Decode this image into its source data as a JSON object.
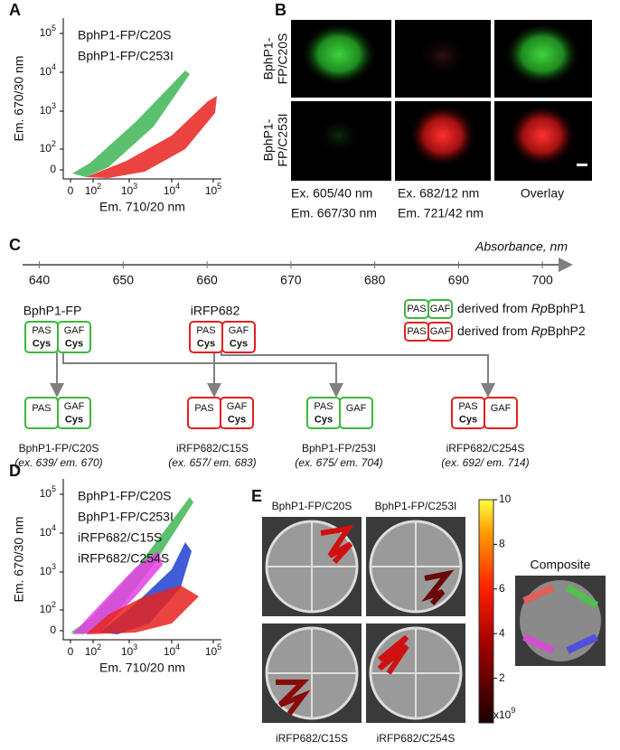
{
  "panels": {
    "a": {
      "label": "A",
      "y_label": "Em. 670/30 nm",
      "x_label": "Em. 710/20 nm",
      "yticks": [
        {
          "base": "10",
          "exp": "5"
        },
        {
          "base": "10",
          "exp": "4"
        },
        {
          "base": "10",
          "exp": "3"
        },
        {
          "base": "10",
          "exp": "2"
        },
        {
          "base": "0"
        }
      ],
      "xticks": [
        {
          "base": "0"
        },
        {
          "base": "10",
          "exp": "2"
        },
        {
          "base": "10",
          "exp": "3"
        },
        {
          "base": "10",
          "exp": "4"
        },
        {
          "base": "10",
          "exp": "5"
        }
      ],
      "legend": [
        {
          "name": "BphP1-FP/C20S",
          "color": "#33b24a"
        },
        {
          "name": "BphP1-FP/C253I",
          "color": "#e8231f"
        }
      ]
    },
    "b": {
      "label": "B",
      "rows": [
        {
          "lines": [
            "BphP1-",
            "FP/C20S"
          ],
          "color": "#33b24a"
        },
        {
          "lines": [
            "BphP1-",
            "FP/C253I"
          ],
          "color": "#e8231f"
        }
      ],
      "columns": [
        [
          "Ex. 605/40 nm",
          "Em. 667/30 nm"
        ],
        [
          "Ex. 682/12 nm",
          "Em. 721/42 nm"
        ],
        [
          "Overlay"
        ]
      ]
    },
    "c": {
      "label": "C",
      "axis": {
        "title": "Absorbance, nm",
        "ticks": [
          640,
          650,
          660,
          670,
          680,
          690,
          700
        ],
        "lim": [
          638,
          703
        ]
      },
      "parents": [
        {
          "name": "BphP1-FP",
          "color": "#3cb83c",
          "domains": [
            {
              "name": "PAS",
              "sub": "Cys"
            },
            {
              "name": "GAF",
              "sub": "Cys"
            }
          ]
        },
        {
          "name": "iRFP682",
          "color": "#e02020",
          "domains": [
            {
              "name": "PAS",
              "sub": "Cys"
            },
            {
              "name": "GAF",
              "sub": "Cys"
            }
          ]
        }
      ],
      "legend": [
        {
          "color": "#3cb83c",
          "domains": [
            "PAS",
            "GAF"
          ],
          "prefix": "derived from ",
          "italic": "Rp",
          "name": "BphP1"
        },
        {
          "color": "#e02020",
          "domains": [
            "PAS",
            "GAF"
          ],
          "prefix": "derived from ",
          "italic": "Rp",
          "name": "BphP2"
        }
      ],
      "mutants": [
        {
          "name": "BphP1-FP/C20S",
          "spectra": "(ex. 639/ em. 670)",
          "color": "#3cb83c",
          "domains": [
            {
              "name": "PAS"
            },
            {
              "name": "GAF",
              "sub": "Cys"
            }
          ]
        },
        {
          "name": "iRFP682/C15S",
          "spectra": "(ex. 657/ em. 683)",
          "color": "#e02020",
          "domains": [
            {
              "name": "PAS"
            },
            {
              "name": "GAF",
              "sub": "Cys"
            }
          ]
        },
        {
          "name": "BphP1-FP/253I",
          "spectra": "(ex. 675/ em. 704)",
          "color": "#3cb83c",
          "domains": [
            {
              "name": "PAS",
              "sub": "Cys"
            },
            {
              "name": "GAF"
            }
          ]
        },
        {
          "name": "iRFP682/C254S",
          "spectra": "(ex. 692/ em. 714)",
          "color": "#e02020",
          "domains": [
            {
              "name": "PAS",
              "sub": "Cys"
            },
            {
              "name": "GAF"
            }
          ]
        }
      ]
    },
    "d": {
      "label": "D",
      "y_label": "Em. 670/30 nm",
      "x_label": "Em. 710/20 nm",
      "yticks": [
        {
          "base": "10",
          "exp": "5"
        },
        {
          "base": "10",
          "exp": "4"
        },
        {
          "base": "10",
          "exp": "3"
        },
        {
          "base": "10",
          "exp": "2"
        },
        {
          "base": "0"
        }
      ],
      "xticks": [
        {
          "base": "0"
        },
        {
          "base": "10",
          "exp": "2"
        },
        {
          "base": "10",
          "exp": "3"
        },
        {
          "base": "10",
          "exp": "4"
        },
        {
          "base": "10",
          "exp": "5"
        }
      ],
      "legend": [
        {
          "name": "BphP1-FP/C20S",
          "color": "#33b24a"
        },
        {
          "name": "BphP1-FP/C253I",
          "color": "#1f3fd0"
        },
        {
          "name": "iRFP682/C15S",
          "color": "#e83ee8"
        },
        {
          "name": "iRFP682/C254S",
          "color": "#e8231f"
        }
      ]
    },
    "e": {
      "label": "E",
      "plates": [
        "BphP1-FP/C20S",
        "BphP1-FP/C253I",
        "iRFP682/C15S",
        "iRFP682/C254S"
      ],
      "colorbar": {
        "lim": [
          0,
          10
        ],
        "ticks": [
          2,
          4,
          6,
          8,
          10
        ],
        "unit": {
          "base": "x10",
          "exp": "9"
        }
      },
      "composite": "Composite"
    }
  }
}
